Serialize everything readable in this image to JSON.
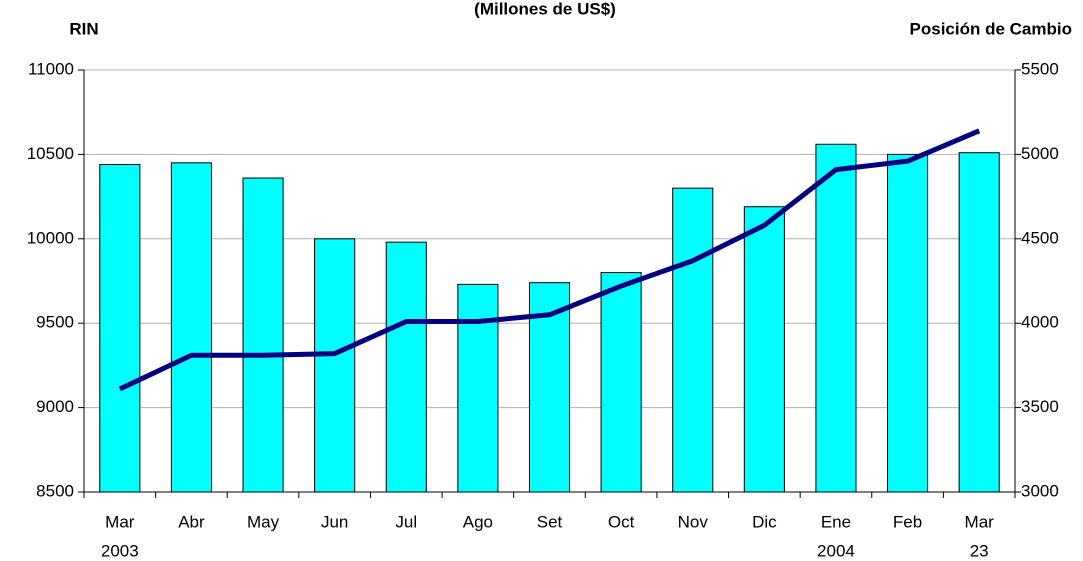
{
  "chart_data": {
    "type": "bar-line",
    "subtitle": "(Millones de US$)",
    "y_label": "RIN",
    "y2_label": "Posición de Cambio",
    "categories": [
      "Mar",
      "Abr",
      "May",
      "Jun",
      "Jul",
      "Ago",
      "Set",
      "Oct",
      "Nov",
      "Dic",
      "Ene",
      "Feb",
      "Mar"
    ],
    "category_sublabels": [
      "2003",
      null,
      null,
      null,
      null,
      null,
      null,
      null,
      null,
      null,
      "2004",
      null,
      "23"
    ],
    "series": [
      {
        "name": "RIN",
        "type": "bar",
        "color": "#00ffff",
        "values": [
          10440,
          10450,
          10360,
          10000,
          9980,
          9730,
          9740,
          9800,
          10300,
          10190,
          10560,
          10500,
          10510
        ]
      },
      {
        "name": "Posición de Cambio",
        "type": "line",
        "axis": "y2",
        "color": "#000080",
        "values": [
          3610,
          3810,
          3810,
          3820,
          4010,
          4010,
          4050,
          4220,
          4370,
          4580,
          4910,
          4960,
          5140
        ]
      }
    ],
    "ylim": [
      8500,
      11000
    ],
    "yticks": [
      8500,
      9000,
      9500,
      10000,
      10500,
      11000
    ],
    "y2lim": [
      3000,
      5500
    ],
    "y2ticks": [
      3000,
      3500,
      4000,
      4500,
      5000,
      5500
    ],
    "grid": true
  }
}
